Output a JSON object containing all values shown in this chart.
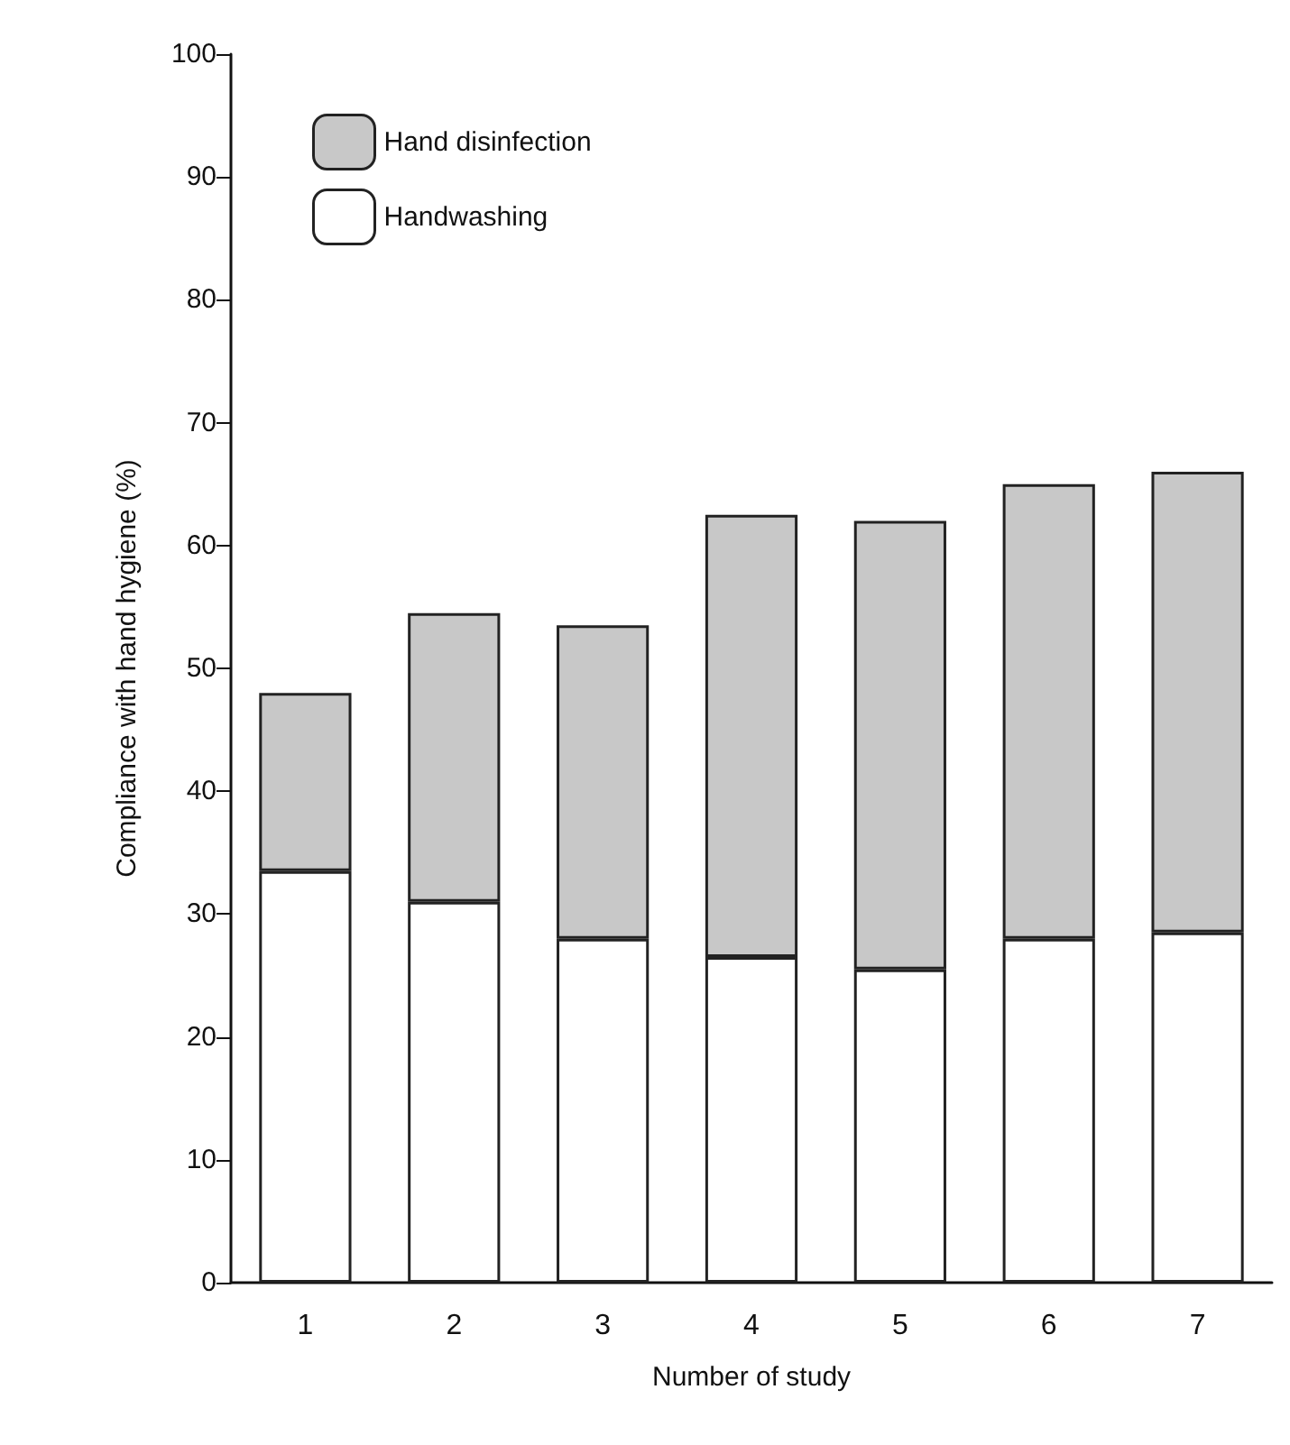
{
  "chart_data": {
    "type": "bar",
    "stacked": true,
    "xlabel": "Number of study",
    "ylabel": "Compliance with hand hygiene (%)",
    "categories": [
      "1",
      "2",
      "3",
      "4",
      "5",
      "6",
      "7"
    ],
    "series": [
      {
        "name": "Handwashing",
        "color": "#ffffff",
        "values": [
          33.5,
          31,
          28,
          26.5,
          25.5,
          28,
          28.5
        ]
      },
      {
        "name": "Hand disinfection",
        "color": "#c8c8c8",
        "values": [
          14.5,
          23.5,
          25.5,
          36,
          36.5,
          37,
          37.5
        ]
      }
    ],
    "ylim": [
      0,
      100
    ],
    "yticks": [
      0,
      10,
      20,
      30,
      40,
      50,
      60,
      70,
      80,
      90,
      100
    ],
    "grid": false,
    "legend": "top left"
  }
}
